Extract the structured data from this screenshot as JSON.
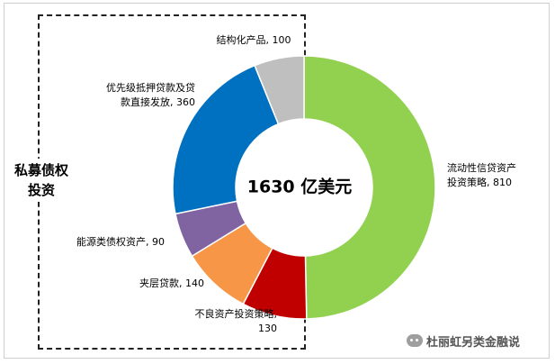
{
  "chart_data": {
    "type": "pie",
    "donut": true,
    "center_label": "1630 亿美元",
    "total": 1630,
    "segments": [
      {
        "name": "流动性信贷资产投资策略",
        "label_line1": "流动性信贷资产",
        "label_line2": "投资策略, 810",
        "value": 810,
        "color": "#92d050"
      },
      {
        "name": "不良资产投资策略",
        "label_line1": "不良资产投资策略,",
        "label_line2": "130",
        "value": 130,
        "color": "#c00000"
      },
      {
        "name": "夹层贷款",
        "label_line1": "夹层贷款, 140",
        "label_line2": "",
        "value": 140,
        "color": "#f79646"
      },
      {
        "name": "能源类债权资产",
        "label_line1": "能源类债权资产, 90",
        "label_line2": "",
        "value": 90,
        "color": "#8064a2"
      },
      {
        "name": "优先级抵押贷款及贷款直接发放",
        "label_line1": "优先级抵押贷款及贷",
        "label_line2": "款直接发放, 360",
        "value": 360,
        "color": "#0070c0"
      },
      {
        "name": "结构化产品",
        "label_line1": "结构化产品, 100",
        "label_line2": "",
        "value": 100,
        "color": "#bfbfbf"
      }
    ],
    "bracket_label": [
      "私募债权",
      "投资"
    ]
  },
  "watermark": "杜丽虹另类金融说"
}
